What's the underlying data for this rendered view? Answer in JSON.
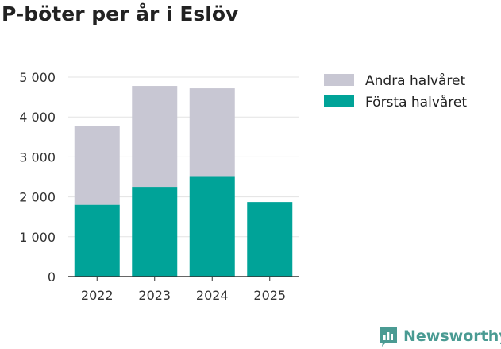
{
  "title": "P-böter per år i Eslöv",
  "brand": {
    "name": "Newsworthy",
    "logo_icon": "newsworthy-chart-icon"
  },
  "colors": {
    "first_half": "#00a398",
    "second_half": "#c8c7d3",
    "grid": "#e3e3e3",
    "axis": "#333333",
    "brand": "#4a9b93"
  },
  "chart_data": {
    "type": "bar",
    "stacked": true,
    "categories": [
      "2022",
      "2023",
      "2024",
      "2025"
    ],
    "series": [
      {
        "name": "Första halvåret",
        "values": [
          1800,
          2250,
          2500,
          1870
        ],
        "color": "#00a398"
      },
      {
        "name": "Andra halvåret",
        "values": [
          1980,
          2530,
          2220,
          0
        ],
        "color": "#c8c7d3"
      }
    ],
    "ylim": [
      0,
      5000
    ],
    "yticks": [
      0,
      1000,
      2000,
      3000,
      4000,
      5000
    ],
    "ytick_labels": [
      "0",
      "1 000",
      "2 000",
      "3 000",
      "4 000",
      "5 000"
    ],
    "grid": true,
    "legend": {
      "position": "right",
      "entries": [
        "Andra halvåret",
        "Första halvåret"
      ]
    },
    "xlabel": "",
    "ylabel": ""
  }
}
